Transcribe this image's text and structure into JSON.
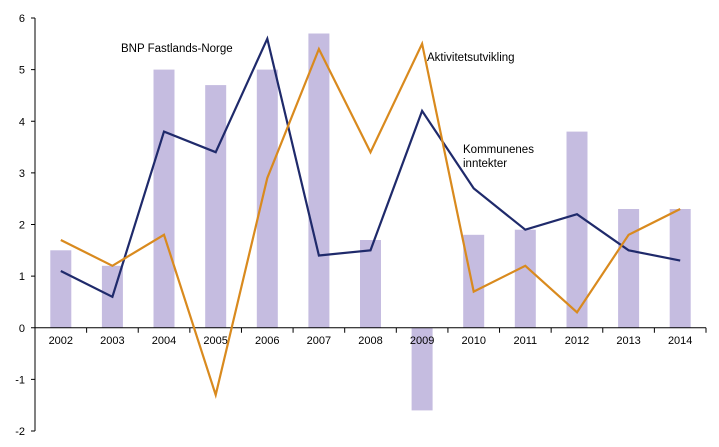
{
  "chart_data": {
    "type": "bar+line",
    "categories": [
      "2002",
      "2003",
      "2004",
      "2005",
      "2006",
      "2007",
      "2008",
      "2009",
      "2010",
      "2011",
      "2012",
      "2013",
      "2014"
    ],
    "bars": {
      "name": "Kommunenes inntekter",
      "color": "#c5bce0",
      "values": [
        1.5,
        1.2,
        5.0,
        4.7,
        5.0,
        5.7,
        1.7,
        -1.6,
        1.8,
        1.9,
        3.8,
        2.3,
        2.3
      ]
    },
    "series": [
      {
        "name": "BNP Fastlands-Norge",
        "color": "#1f2a6b",
        "values": [
          1.1,
          0.6,
          3.8,
          3.4,
          5.6,
          1.4,
          1.5,
          4.2,
          2.7,
          1.9,
          2.2,
          1.5,
          1.3
        ]
      },
      {
        "name": "Aktivitetsutvikling",
        "color": "#d98a1e",
        "values": [
          1.7,
          1.2,
          1.8,
          -1.3,
          2.9,
          5.4,
          3.4,
          5.5,
          0.7,
          1.2,
          0.3,
          1.8,
          2.3
        ]
      }
    ],
    "annotations": [
      {
        "lines": [
          "BNP Fastlands-Norge"
        ]
      },
      {
        "lines": [
          "Aktivitetsutvikling"
        ]
      },
      {
        "lines": [
          "Kommunenes",
          "inntekter"
        ]
      }
    ],
    "y_ticks": [
      "6",
      "5",
      "4",
      "3",
      "2",
      "1",
      "0",
      "-1",
      "-2"
    ],
    "ylim": [
      -2,
      6
    ],
    "grid": false,
    "legend": "none"
  }
}
